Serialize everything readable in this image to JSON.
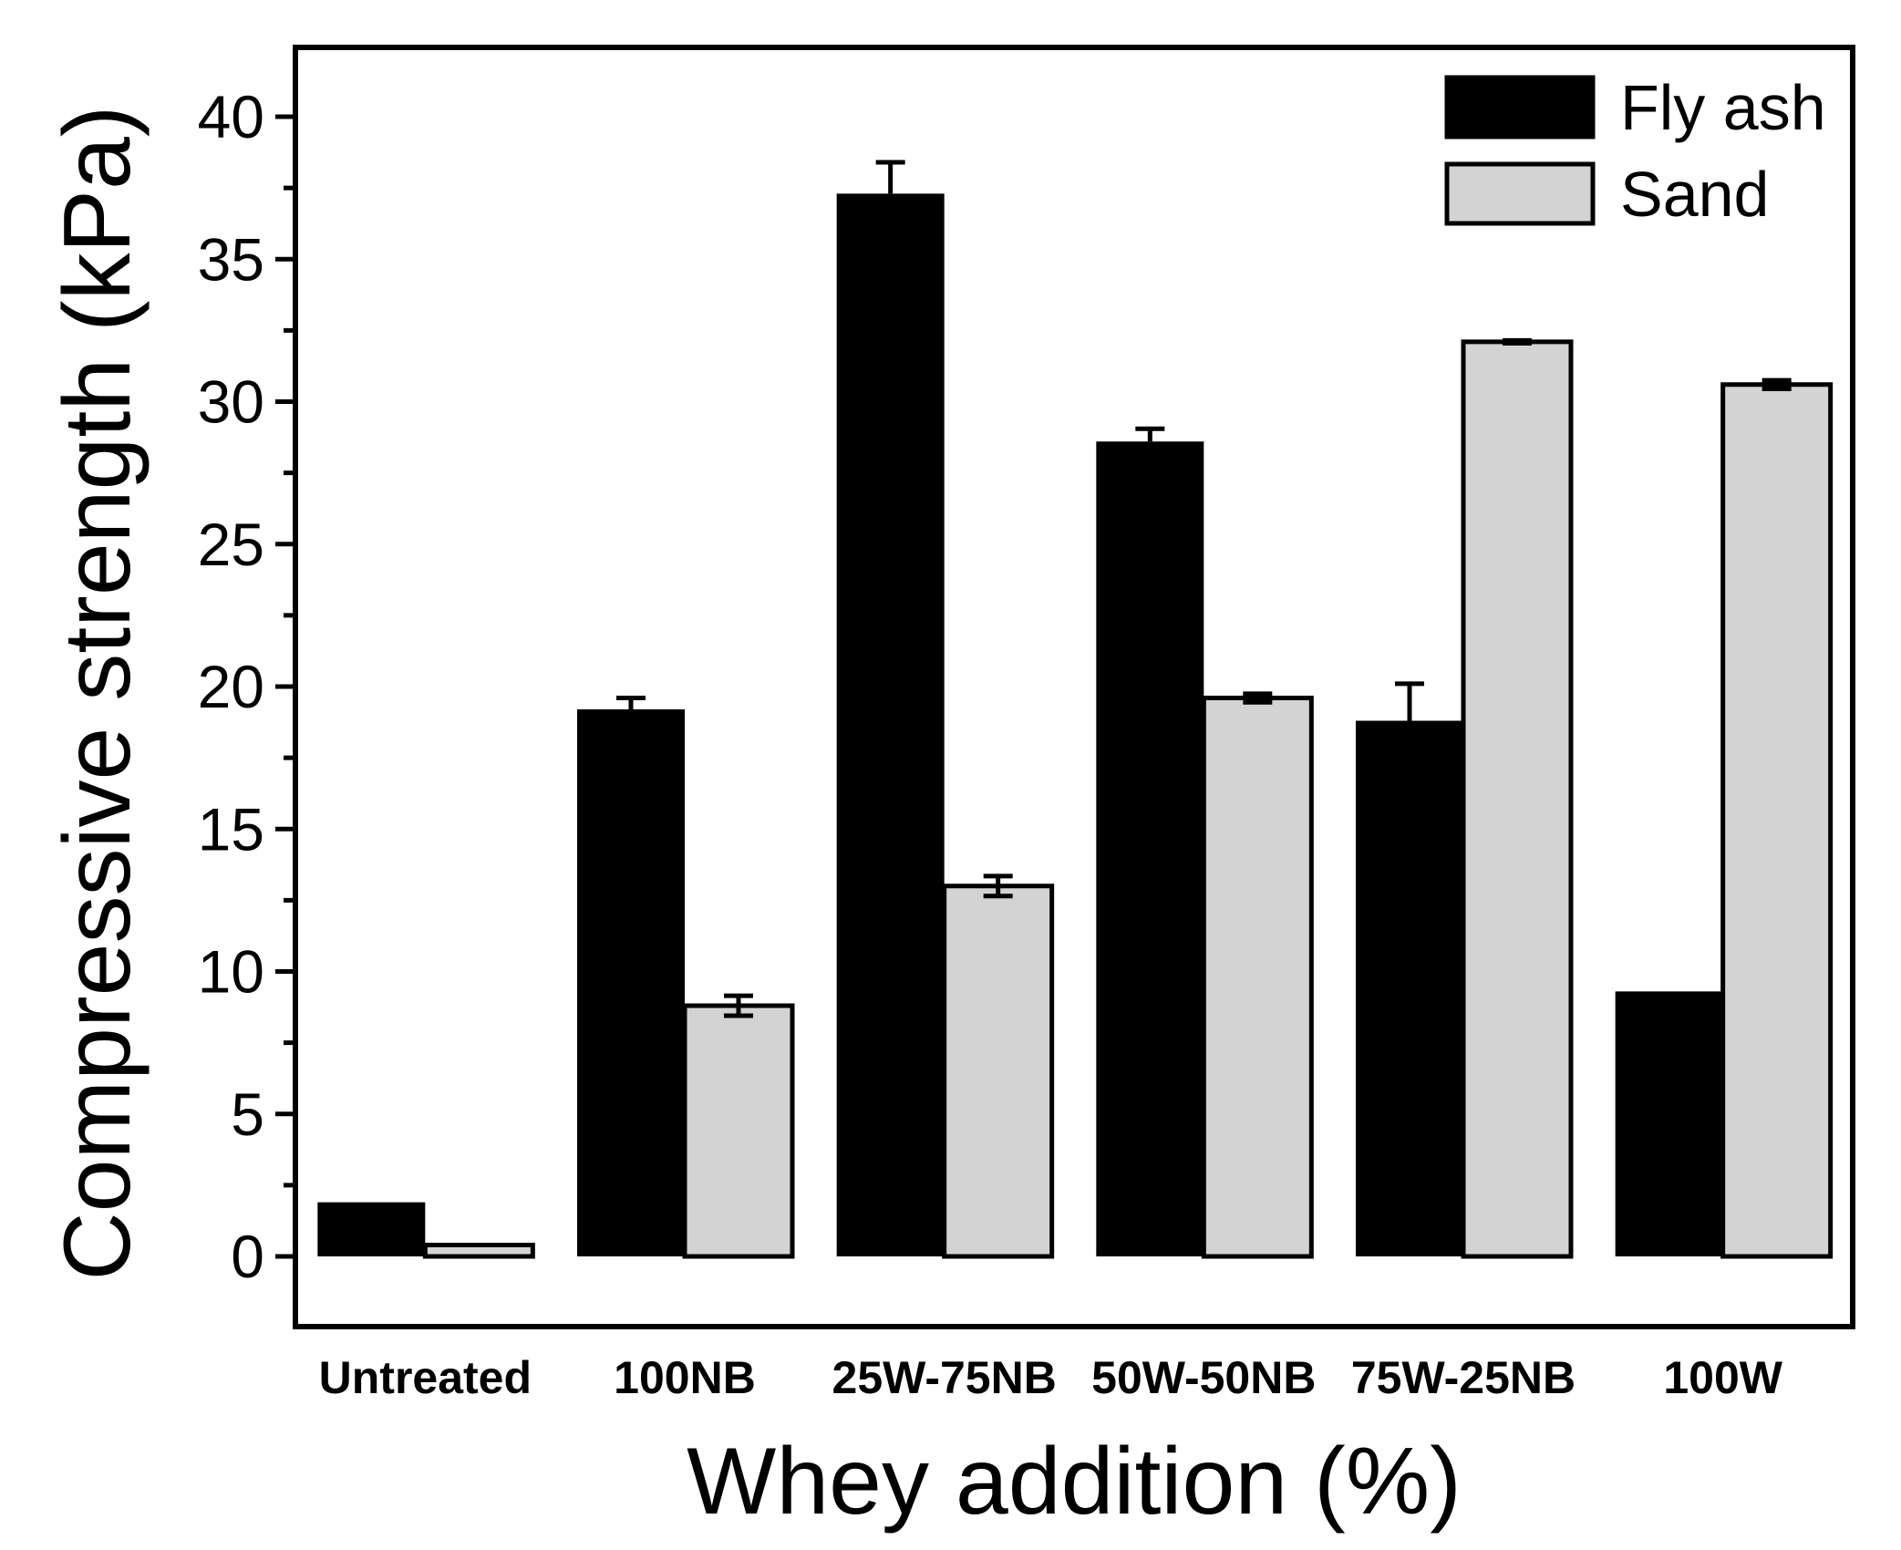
{
  "chart_data": {
    "type": "bar",
    "title": "",
    "xlabel": "Whey addition (%)",
    "ylabel": "Compressive strength (kPa)",
    "ylim": [
      -2.5,
      42.5
    ],
    "yticks": [
      0,
      5,
      10,
      15,
      20,
      25,
      30,
      35,
      40
    ],
    "ytick_labels": [
      "0",
      "5",
      "10",
      "15",
      "20",
      "25",
      "30",
      "35",
      "40"
    ],
    "categories": [
      "Untreated",
      "100NB",
      "25W-75NB",
      "50W-50NB",
      "75W-25NB",
      "100W"
    ],
    "series": [
      {
        "name": "Fly ash",
        "color": "#000000",
        "values": [
          1.9,
          19.2,
          37.3,
          28.6,
          18.8,
          9.3
        ],
        "errors": [
          0.0,
          0.4,
          1.1,
          0.45,
          1.3,
          0.0
        ]
      },
      {
        "name": "Sand",
        "color": "#d3d3d3",
        "values": [
          0.4,
          8.8,
          13.0,
          19.6,
          32.1,
          30.6
        ],
        "errors": [
          0.0,
          0.35,
          0.35,
          0.15,
          0.05,
          0.15
        ]
      }
    ],
    "legend_position": "top-right",
    "grid": false
  }
}
